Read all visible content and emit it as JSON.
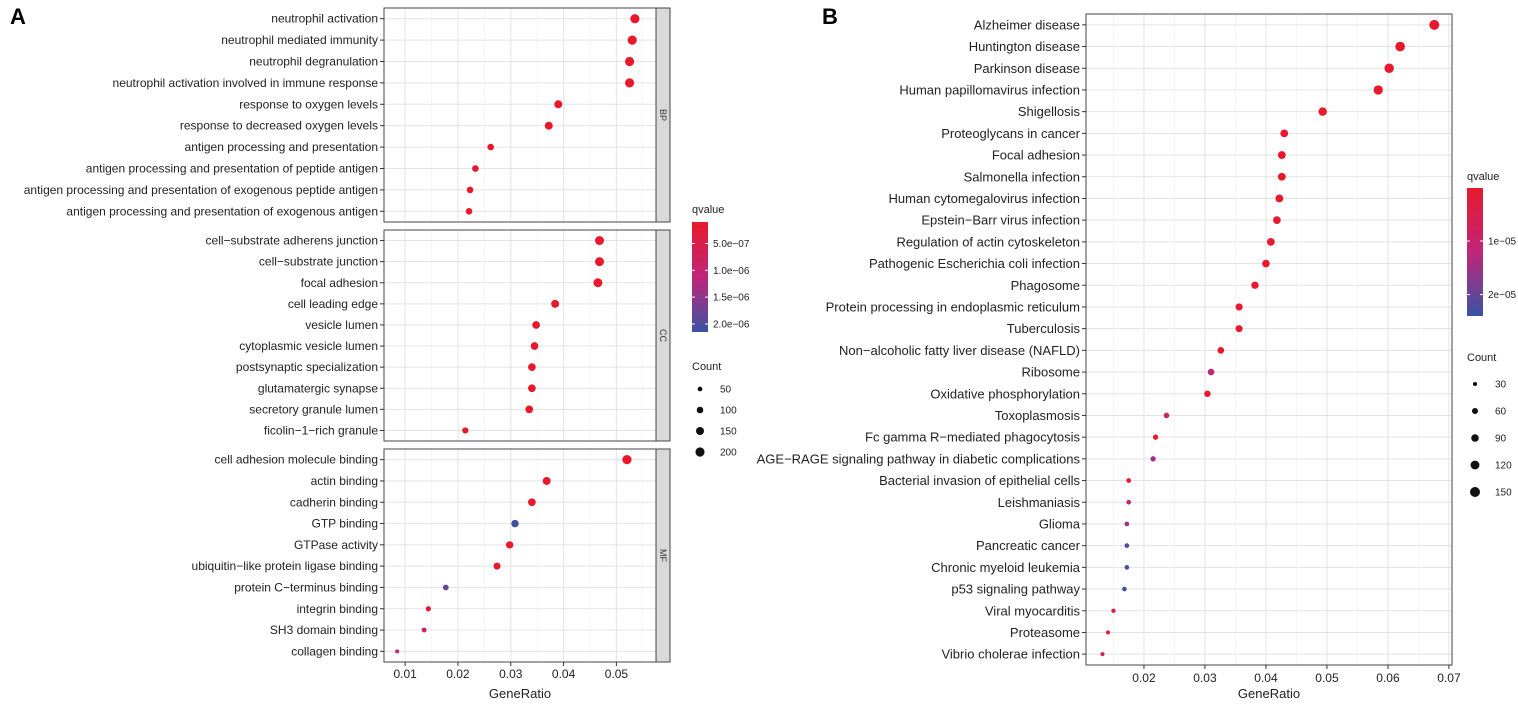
{
  "panel_labels": {
    "a": "A",
    "b": "B"
  },
  "chart_data": [
    {
      "type": "scatter",
      "subtype": "dot-plot",
      "panel": "A",
      "xlabel": "GeneRatio",
      "xlim": [
        0.006,
        0.0575
      ],
      "xticks": [
        0.01,
        0.02,
        0.03,
        0.04,
        0.05
      ],
      "xtick_labels": [
        "0.01",
        "0.02",
        "0.03",
        "0.04",
        "0.05"
      ],
      "facets": [
        {
          "name": "BP",
          "terms": [
            {
              "label": "neutrophil activation",
              "x": 0.0535,
              "q": "1e-07",
              "size": 200
            },
            {
              "label": "neutrophil mediated immunity",
              "x": 0.053,
              "q": "1e-07",
              "size": 200
            },
            {
              "label": "neutrophil degranulation",
              "x": 0.0525,
              "q": "1e-07",
              "size": 200
            },
            {
              "label": "neutrophil activation involved in immune response",
              "x": 0.0525,
              "q": "1e-07",
              "size": 200
            },
            {
              "label": "response to oxygen levels",
              "x": 0.039,
              "q": "1e-07",
              "size": 150
            },
            {
              "label": "response to decreased oxygen levels",
              "x": 0.0372,
              "q": "1e-07",
              "size": 150
            },
            {
              "label": "antigen processing and presentation",
              "x": 0.0262,
              "q": "1e-07",
              "size": 100
            },
            {
              "label": "antigen processing and presentation of peptide antigen",
              "x": 0.0233,
              "q": "1e-07",
              "size": 100
            },
            {
              "label": "antigen processing and presentation of exogenous peptide antigen",
              "x": 0.0223,
              "q": "1e-07",
              "size": 100
            },
            {
              "label": "antigen processing and presentation of exogenous antigen",
              "x": 0.0221,
              "q": "1e-07",
              "size": 100
            }
          ]
        },
        {
          "name": "CC",
          "terms": [
            {
              "label": "cell−substrate adherens junction",
              "x": 0.0468,
              "q": "1e-07",
              "size": 190
            },
            {
              "label": "cell−substrate junction",
              "x": 0.0468,
              "q": "1e-07",
              "size": 190
            },
            {
              "label": "focal adhesion",
              "x": 0.0465,
              "q": "1e-07",
              "size": 190
            },
            {
              "label": "cell leading edge",
              "x": 0.0384,
              "q": "1e-07",
              "size": 150
            },
            {
              "label": "vesicle lumen",
              "x": 0.0348,
              "q": "1e-07",
              "size": 140
            },
            {
              "label": "cytoplasmic vesicle lumen",
              "x": 0.0345,
              "q": "1e-07",
              "size": 140
            },
            {
              "label": "postsynaptic specialization",
              "x": 0.034,
              "q": "1e-07",
              "size": 140
            },
            {
              "label": "glutamatergic synapse",
              "x": 0.034,
              "q": "1e-07",
              "size": 140
            },
            {
              "label": "secretory granule lumen",
              "x": 0.0335,
              "q": "1e-07",
              "size": 140
            },
            {
              "label": "ficolin−1−rich granule",
              "x": 0.0214,
              "q": "1e-07",
              "size": 90
            }
          ]
        },
        {
          "name": "MF",
          "terms": [
            {
              "label": "cell adhesion molecule binding",
              "x": 0.052,
              "q": "1e-07",
              "size": 200
            },
            {
              "label": "actin binding",
              "x": 0.0368,
              "q": "1e-07",
              "size": 150
            },
            {
              "label": "cadherin binding",
              "x": 0.034,
              "q": "1e-07",
              "size": 140
            },
            {
              "label": "GTP binding",
              "x": 0.0308,
              "q": "2.1e-06",
              "size": 130
            },
            {
              "label": "GTPase activity",
              "x": 0.0298,
              "q": "1e-07",
              "size": 125
            },
            {
              "label": "ubiquitin−like protein ligase binding",
              "x": 0.0274,
              "q": "1e-07",
              "size": 115
            },
            {
              "label": "protein C−terminus binding",
              "x": 0.0177,
              "q": "1.8e-06",
              "size": 75
            },
            {
              "label": "integrin binding",
              "x": 0.0144,
              "q": "3e-07",
              "size": 60
            },
            {
              "label": "SH3 domain binding",
              "x": 0.0136,
              "q": "9e-07",
              "size": 55
            },
            {
              "label": "collagen binding",
              "x": 0.0085,
              "q": "1.1e-06",
              "size": 35
            }
          ]
        }
      ],
      "color_legend": {
        "title": "qvalue",
        "ticks": [
          "5.0e−07",
          "1.0e−06",
          "1.5e−06",
          "2.0e−06"
        ],
        "tick_values": [
          5e-07,
          1e-06,
          1.5e-06,
          2e-06
        ],
        "range": [
          1e-07,
          2.15e-06
        ],
        "low_color": "#e8192c",
        "high_color": "#3953a4"
      },
      "size_legend": {
        "title": "Count",
        "values": [
          50,
          100,
          150,
          200
        ],
        "labels": [
          "50",
          "100",
          "150",
          "200"
        ]
      }
    },
    {
      "type": "scatter",
      "subtype": "dot-plot",
      "panel": "B",
      "xlabel": "GeneRatio",
      "xlim": [
        0.0105,
        0.0705
      ],
      "xticks": [
        0.02,
        0.03,
        0.04,
        0.05,
        0.06,
        0.07
      ],
      "xtick_labels": [
        "0.02",
        "0.03",
        "0.04",
        "0.05",
        "0.06",
        "0.07"
      ],
      "terms": [
        {
          "label": "Alzheimer disease",
          "x": 0.0676,
          "q": "1e-07",
          "size": 150
        },
        {
          "label": "Huntington disease",
          "x": 0.062,
          "q": "1e-07",
          "size": 140
        },
        {
          "label": "Parkinson disease",
          "x": 0.0602,
          "q": "1e-07",
          "size": 135
        },
        {
          "label": "Human papillomavirus infection",
          "x": 0.0584,
          "q": "1e-07",
          "size": 130
        },
        {
          "label": "Shigellosis",
          "x": 0.0493,
          "q": "1e-07",
          "size": 110
        },
        {
          "label": "Proteoglycans in cancer",
          "x": 0.043,
          "q": "1e-07",
          "size": 95
        },
        {
          "label": "Focal adhesion",
          "x": 0.0426,
          "q": "1e-07",
          "size": 95
        },
        {
          "label": "Salmonella infection",
          "x": 0.0426,
          "q": "1e-07",
          "size": 95
        },
        {
          "label": "Human cytomegalovirus infection",
          "x": 0.0422,
          "q": "1e-07",
          "size": 95
        },
        {
          "label": "Epstein−Barr virus infection",
          "x": 0.0418,
          "q": "1e-07",
          "size": 92
        },
        {
          "label": "Regulation of actin cytoskeleton",
          "x": 0.0408,
          "q": "1e-07",
          "size": 92
        },
        {
          "label": "Pathogenic Escherichia coli infection",
          "x": 0.04,
          "q": "1e-07",
          "size": 90
        },
        {
          "label": "Phagosome",
          "x": 0.0382,
          "q": "1e-07",
          "size": 85
        },
        {
          "label": "Protein processing in endoplasmic reticulum",
          "x": 0.0356,
          "q": "1e-07",
          "size": 80
        },
        {
          "label": "Tuberculosis",
          "x": 0.0356,
          "q": "1e-07",
          "size": 80
        },
        {
          "label": "Non−alcoholic fatty liver disease (NAFLD)",
          "x": 0.0326,
          "q": "1e-07",
          "size": 72
        },
        {
          "label": "Ribosome",
          "x": 0.031,
          "q": "1.2e-05",
          "size": 70
        },
        {
          "label": "Oxidative phosphorylation",
          "x": 0.0304,
          "q": "1e-07",
          "size": 68
        },
        {
          "label": "Toxoplasmosis",
          "x": 0.0237,
          "q": "8e-06",
          "size": 52
        },
        {
          "label": "Fc gamma R−mediated phagocytosis",
          "x": 0.0219,
          "q": "1e-07",
          "size": 48
        },
        {
          "label": "AGE−RAGE signaling pathway in diabetic complications",
          "x": 0.0215,
          "q": "1.5e-05",
          "size": 48
        },
        {
          "label": "Bacterial invasion of epithelial cells",
          "x": 0.0175,
          "q": "1e-07",
          "size": 39
        },
        {
          "label": "Leishmaniasis",
          "x": 0.0175,
          "q": "1.3e-05",
          "size": 39
        },
        {
          "label": "Glioma",
          "x": 0.0172,
          "q": "1.6e-05",
          "size": 38
        },
        {
          "label": "Pancreatic cancer",
          "x": 0.0172,
          "q": "2.2e-05",
          "size": 38
        },
        {
          "label": "Chronic myeloid leukemia",
          "x": 0.0172,
          "q": "2.3e-05",
          "size": 38
        },
        {
          "label": "p53 signaling pathway",
          "x": 0.0168,
          "q": "2.3e-05",
          "size": 37
        },
        {
          "label": "Viral myocarditis",
          "x": 0.015,
          "q": "3e-06",
          "size": 33
        },
        {
          "label": "Proteasome",
          "x": 0.0141,
          "q": "1e-07",
          "size": 31
        },
        {
          "label": "Vibrio cholerae infection",
          "x": 0.0132,
          "q": "5e-06",
          "size": 29
        }
      ],
      "color_legend": {
        "title": "qvalue",
        "ticks": [
          "1e−05",
          "2e−05"
        ],
        "tick_values": [
          1e-05,
          2e-05
        ],
        "range": [
          1e-07,
          2.4e-05
        ],
        "low_color": "#e8192c",
        "high_color": "#3953a4"
      },
      "size_legend": {
        "title": "Count",
        "values": [
          30,
          60,
          90,
          120,
          150
        ],
        "labels": [
          "30",
          "60",
          "90",
          "120",
          "150"
        ]
      }
    }
  ]
}
